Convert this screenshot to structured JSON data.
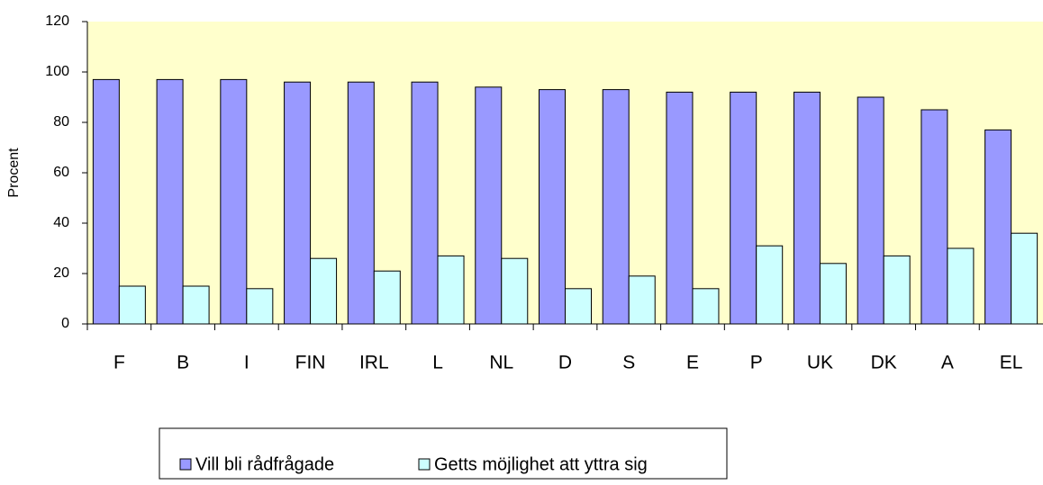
{
  "chart_data": {
    "type": "bar",
    "y_label": "Procent",
    "categories": [
      "F",
      "B",
      "I",
      "FIN",
      "IRL",
      "L",
      "NL",
      "D",
      "S",
      "E",
      "P",
      "UK",
      "DK",
      "A",
      "EL"
    ],
    "series": [
      {
        "name": "Vill bli rådfrågade",
        "color": "#9999ff",
        "values": [
          97,
          97,
          97,
          96,
          96,
          96,
          94,
          93,
          93,
          92,
          92,
          92,
          90,
          85,
          77
        ]
      },
      {
        "name": "Getts möjlighet att yttra sig",
        "color": "#ccffff",
        "values": [
          15,
          15,
          14,
          26,
          21,
          27,
          26,
          14,
          19,
          14,
          31,
          24,
          27,
          30,
          36
        ]
      }
    ],
    "ylim": [
      0,
      120
    ],
    "yticks": [
      0,
      20,
      40,
      60,
      80,
      100,
      120
    ],
    "plot_background": "#ffffcc",
    "legend": "bottom"
  }
}
